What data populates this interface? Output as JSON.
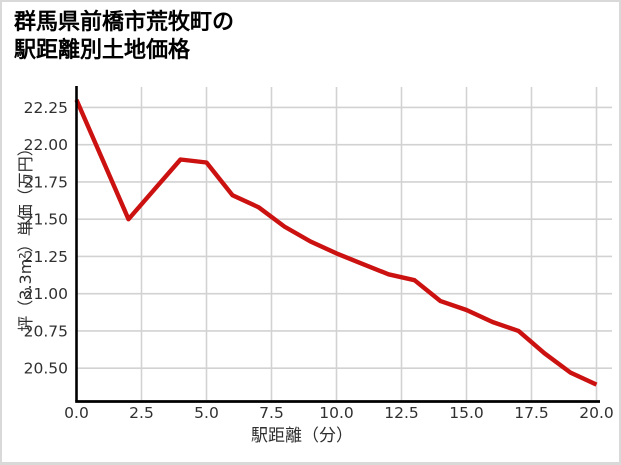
{
  "window": {
    "background": "#ffffff",
    "border_color": "#d9d9d9"
  },
  "chart_data": {
    "type": "line",
    "title": "群馬県前橋市荒牧町の駅距離別土地価格",
    "title_lines": [
      "群馬県前橋市荒牧町の",
      "駅距離別土地価格"
    ],
    "xlabel": "駅距離（分）",
    "ylabel": "坪（3.3m²）単価（万円）",
    "x_ticks": [
      0,
      2.5,
      5,
      7.5,
      10,
      12.5,
      15,
      17.5,
      20
    ],
    "x_tick_labels": [
      "0.0",
      "2.5",
      "5.0",
      "7.5",
      "10.0",
      "12.5",
      "15.0",
      "17.5",
      "20.0"
    ],
    "y_ticks": [
      20.5,
      20.75,
      21.0,
      21.25,
      21.5,
      21.75,
      22.0,
      22.25
    ],
    "y_tick_labels": [
      "20.50",
      "20.75",
      "21.00",
      "21.25",
      "21.50",
      "21.75",
      "22.00",
      "22.25"
    ],
    "xlim": [
      0,
      20.6
    ],
    "ylim": [
      20.285,
      22.36
    ],
    "grid": true,
    "legend": "none",
    "line_color": "#cc1111",
    "grid_color": "#d2d2d2",
    "axis_color": "#000000",
    "tick_label_color": "#303030",
    "series": [
      {
        "name": "駅距離別土地価格",
        "x": [
          0,
          1,
          2,
          3,
          4,
          5,
          6,
          7,
          8,
          9,
          10,
          11,
          12,
          13,
          14,
          15,
          16,
          17,
          18,
          19,
          20
        ],
        "values": [
          22.3,
          21.9,
          21.5,
          21.7,
          21.9,
          21.88,
          21.66,
          21.58,
          21.45,
          21.35,
          21.27,
          21.2,
          21.13,
          21.09,
          20.95,
          20.89,
          20.81,
          20.75,
          20.6,
          20.47,
          20.39
        ]
      }
    ]
  }
}
